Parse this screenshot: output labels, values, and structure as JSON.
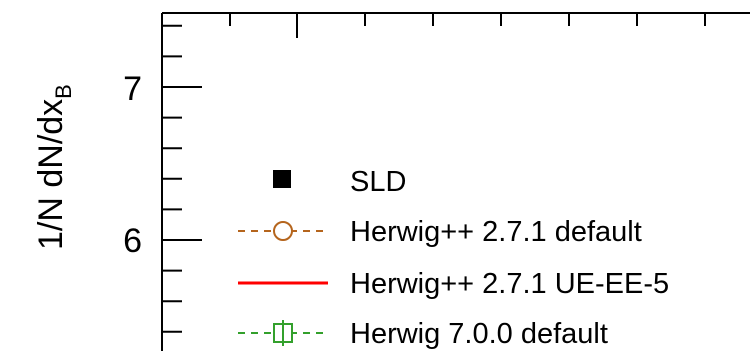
{
  "chart_data": {
    "type": "line",
    "title": "",
    "ylabel": "1/N dN/dx",
    "ylabel_sub": "B",
    "xlabel": "",
    "yticks_major": [
      "7",
      "6"
    ],
    "ylim_visible": [
      5.4,
      7.5
    ],
    "legend_placement": "inside, lower-left",
    "series": [
      {
        "name": "SLD",
        "style": "filled-square",
        "color": "#000000"
      },
      {
        "name": "Herwig++ 2.7.1 default",
        "style": "dashed-open-circle",
        "color": "#b5651d"
      },
      {
        "name": "Herwig++ 2.7.1 UE-EE-5",
        "style": "solid-line",
        "color": "#ff0000"
      },
      {
        "name": "Herwig 7.0.0 default",
        "style": "dashed-open-square",
        "color": "#33a02c"
      }
    ]
  }
}
